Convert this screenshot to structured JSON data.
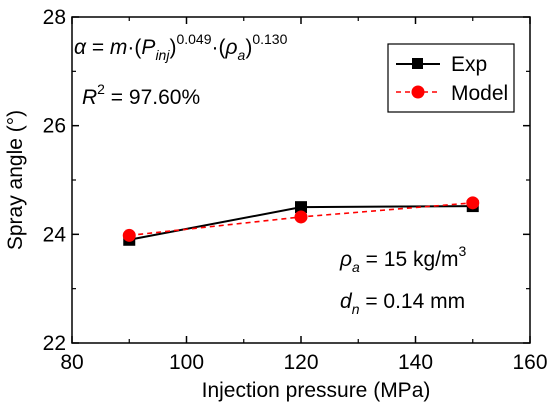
{
  "chart_data": {
    "type": "line",
    "xlabel": "Injection pressure (MPa)",
    "ylabel": "Spray angle (°)",
    "xlim": [
      80,
      160
    ],
    "ylim": [
      22,
      28
    ],
    "xticks": [
      "80",
      "100",
      "120",
      "140",
      "160"
    ],
    "yticks": [
      "22",
      "24",
      "26",
      "28"
    ],
    "grid": false,
    "legend_position": "top-right",
    "series": [
      {
        "name": "Exp",
        "x": [
          90,
          120,
          150
        ],
        "values": [
          23.9,
          24.5,
          24.52
        ],
        "color": "#000000",
        "line": "solid",
        "marker": "square"
      },
      {
        "name": "Model",
        "x": [
          90,
          120,
          150
        ],
        "values": [
          23.98,
          24.32,
          24.58
        ],
        "color": "#ff0000",
        "line": "dashed",
        "marker": "circle"
      }
    ],
    "annotations": {
      "equation": {
        "alpha": "α",
        "eq": " = ",
        "m": "m",
        "dot1": "·(",
        "P": "P",
        "inj": "inj",
        "close1": ")",
        "exp1": "0.049",
        "dot2": "·(",
        "rho": "ρ",
        "a": "a",
        "close2": ")",
        "exp2": "0.130"
      },
      "r2": {
        "R": "R",
        "sup": "2",
        "value": " = 97.60%"
      },
      "rho_line": {
        "rho": "ρ",
        "sub": "a",
        "value": " = 15 kg/m",
        "sup": "3"
      },
      "dn_line": {
        "d": "d",
        "sub": "n",
        "value": " = 0.14 mm"
      }
    }
  }
}
